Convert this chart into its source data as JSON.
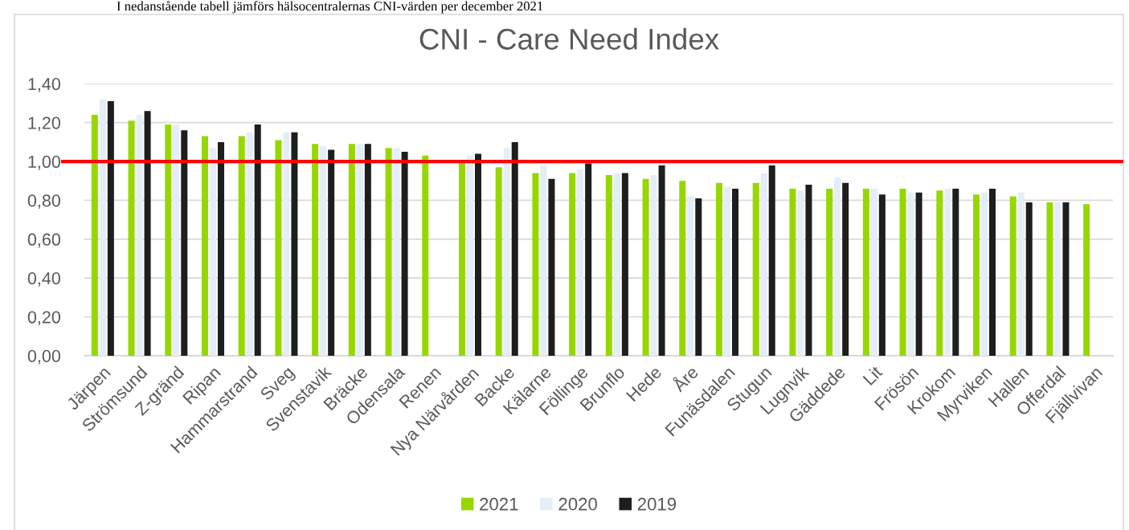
{
  "chart_data": {
    "type": "bar",
    "title": "CNI - Care Need Index",
    "categories": [
      "Järpen",
      "Strömsund",
      "Z-gränd",
      "Ripan",
      "Hammarstrand",
      "Sveg",
      "Svenstavik",
      "Bräcke",
      "Odensala",
      "Renen",
      "Nya Närvården",
      "Backe",
      "Kälarne",
      "Föllinge",
      "Brunflo",
      "Hede",
      "Åre",
      "Funäsdalen",
      "Stugun",
      "Lugnvik",
      "Gäddede",
      "Lit",
      "Frösön",
      "Krokom",
      "Myrviken",
      "Hallen",
      "Offerdal",
      "Fjällvivan"
    ],
    "series": [
      {
        "name": "2021",
        "color": "#97d700",
        "values": [
          1.24,
          1.21,
          1.19,
          1.13,
          1.13,
          1.11,
          1.09,
          1.09,
          1.07,
          1.03,
          1.0,
          0.97,
          0.94,
          0.94,
          0.93,
          0.91,
          0.9,
          0.89,
          0.89,
          0.86,
          0.86,
          0.86,
          0.86,
          0.85,
          0.83,
          0.82,
          0.79,
          0.78
        ]
      },
      {
        "name": "2020",
        "color": "#e4eef8",
        "values": [
          1.32,
          1.24,
          1.19,
          1.07,
          1.15,
          1.15,
          1.08,
          1.09,
          1.07,
          null,
          1.03,
          1.07,
          0.98,
          0.96,
          0.94,
          0.93,
          0.82,
          0.87,
          0.94,
          0.85,
          0.92,
          0.86,
          0.84,
          0.86,
          0.84,
          0.84,
          0.79,
          null
        ]
      },
      {
        "name": "2019",
        "color": "#1e1e1e",
        "values": [
          1.31,
          1.26,
          1.16,
          1.1,
          1.19,
          1.15,
          1.06,
          1.09,
          1.05,
          null,
          1.04,
          1.1,
          0.91,
          0.99,
          0.94,
          0.98,
          0.81,
          0.86,
          0.98,
          0.88,
          0.89,
          0.83,
          0.84,
          0.86,
          0.86,
          0.79,
          0.79,
          null
        ]
      }
    ],
    "ylim": [
      0,
      1.4
    ],
    "yticks": [
      {
        "value": 0,
        "label": "0,00"
      },
      {
        "value": 0.2,
        "label": "0,20"
      },
      {
        "value": 0.4,
        "label": "0,40"
      },
      {
        "value": 0.6,
        "label": "0,60"
      },
      {
        "value": 0.8,
        "label": "0,80"
      },
      {
        "value": 1.0,
        "label": "1,00"
      },
      {
        "value": 1.2,
        "label": "1,20"
      },
      {
        "value": 1.4,
        "label": "1,40"
      }
    ],
    "grid": "y",
    "legend": "bottom",
    "ref_lines": [
      {
        "axis": "y",
        "value": 1.0,
        "color": "#ff0000",
        "line_style": "solid"
      }
    ],
    "annotations": [
      "I nedanstående tabell jämförs hälsocentralernas CNI-värden per december 2021"
    ]
  }
}
